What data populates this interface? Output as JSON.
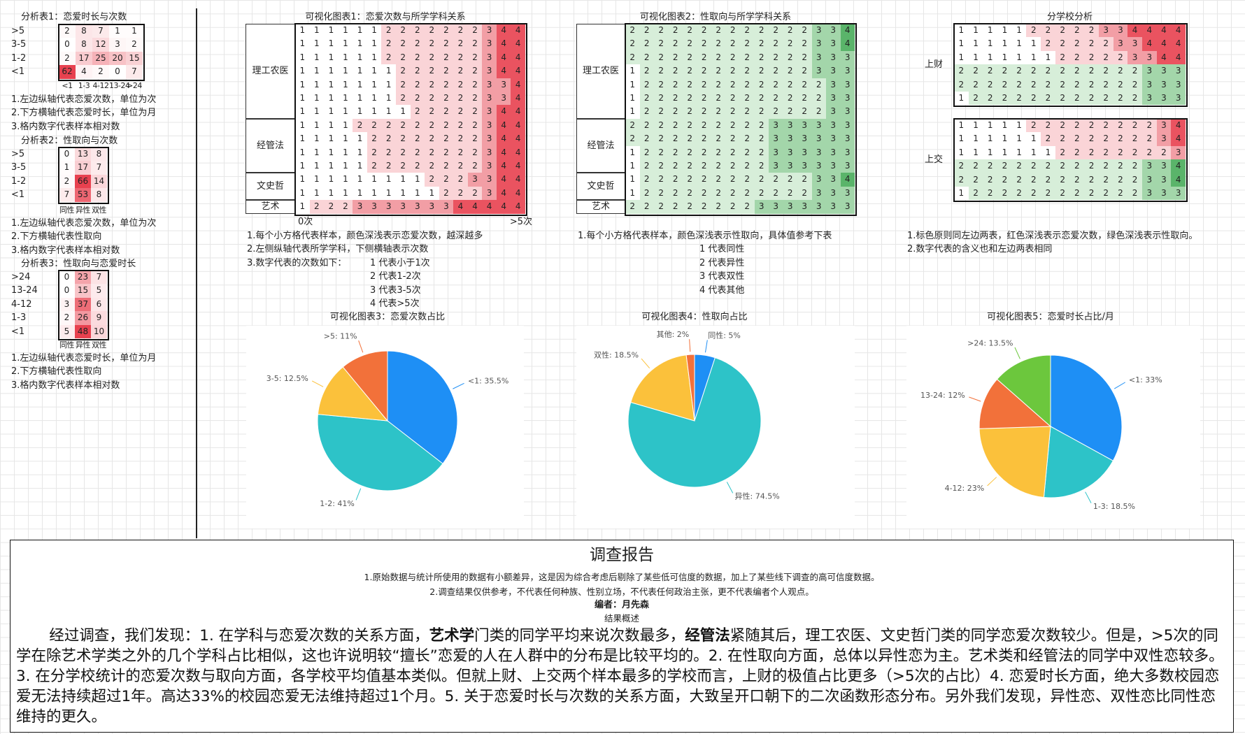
{
  "analysis_tables": [
    {
      "title": "分析表1：恋爱时长与次数",
      "color": "#e8414f",
      "row_labels": [
        ">5",
        "3-5",
        "1-2",
        "<1"
      ],
      "column_labels": [
        "<1",
        "1-3",
        "4-12",
        "13-24",
        ">24"
      ],
      "cells": [
        [
          2,
          8,
          7,
          1,
          1
        ],
        [
          0,
          8,
          12,
          3,
          2
        ],
        [
          2,
          17,
          25,
          20,
          15
        ],
        [
          62,
          4,
          2,
          0,
          7
        ]
      ],
      "notes": [
        "1.左边纵轴代表恋爱次数，单位为次",
        "2.下方横轴代表恋爱时长，单位为月",
        "3.格内数字代表样本相对数"
      ]
    },
    {
      "title": "分析表2：性取向与次数",
      "color": "#e8414f",
      "row_labels": [
        ">5",
        "3-5",
        "1-2",
        "<1"
      ],
      "column_labels": [
        "同性",
        "异性",
        "双性"
      ],
      "cells": [
        [
          0,
          13,
          8
        ],
        [
          1,
          17,
          7
        ],
        [
          2,
          66,
          14
        ],
        [
          7,
          53,
          8
        ]
      ],
      "notes": [
        "1.左边纵轴代表恋爱次数，单位为次",
        "2.下方横轴代表性取向",
        "3.格内数字代表样本相对数"
      ]
    },
    {
      "title": "分析表3：性取向与恋爱时长",
      "color": "#e8414f",
      "row_labels": [
        ">24",
        "13-24",
        "4-12",
        "1-3",
        "<1"
      ],
      "column_labels": [
        "同性",
        "异性",
        "双性"
      ],
      "cells": [
        [
          0,
          23,
          7
        ],
        [
          0,
          15,
          5
        ],
        [
          3,
          37,
          6
        ],
        [
          2,
          26,
          9
        ],
        [
          5,
          48,
          10
        ]
      ],
      "notes": [
        "1.左边纵轴代表恋爱时长，单位为月",
        "2.下方横轴代表性取向",
        "3.格内数字代表样本相对数"
      ]
    }
  ],
  "heatmaps": [
    {
      "title": "可视化图表1：恋爱次数与所学学科关系",
      "colors": [
        "#ffffff",
        "#fad4d7",
        "#f29ea5",
        "#ea5360"
      ],
      "axis_labels": [
        "0次",
        ">5次"
      ],
      "groups": [
        {
          "label": "理工农医",
          "rows": [
            [
              1,
              1,
              1,
              1,
              1,
              1,
              2,
              2,
              2,
              2,
              2,
              2,
              2,
              3,
              4,
              4
            ],
            [
              1,
              1,
              1,
              1,
              1,
              1,
              2,
              2,
              2,
              2,
              2,
              2,
              2,
              3,
              4,
              4
            ],
            [
              1,
              1,
              1,
              1,
              1,
              1,
              2,
              2,
              2,
              2,
              2,
              2,
              2,
              3,
              4,
              4
            ],
            [
              1,
              1,
              1,
              1,
              1,
              1,
              1,
              2,
              2,
              2,
              2,
              2,
              2,
              3,
              4,
              4
            ],
            [
              1,
              1,
              1,
              1,
              1,
              1,
              1,
              2,
              2,
              2,
              2,
              2,
              2,
              3,
              3,
              4
            ],
            [
              1,
              1,
              1,
              1,
              1,
              1,
              1,
              2,
              2,
              2,
              2,
              2,
              2,
              3,
              3,
              4
            ],
            [
              1,
              1,
              1,
              1,
              1,
              1,
              1,
              1,
              2,
              2,
              2,
              2,
              2,
              3,
              4,
              4
            ]
          ]
        },
        {
          "label": "经管法",
          "rows": [
            [
              1,
              1,
              1,
              1,
              2,
              2,
              2,
              2,
              2,
              2,
              2,
              2,
              2,
              3,
              4,
              4
            ],
            [
              1,
              1,
              1,
              1,
              1,
              2,
              2,
              2,
              2,
              2,
              2,
              2,
              2,
              3,
              4,
              4
            ],
            [
              1,
              1,
              1,
              1,
              1,
              2,
              2,
              2,
              2,
              2,
              2,
              2,
              2,
              3,
              4,
              4
            ],
            [
              1,
              1,
              1,
              1,
              1,
              2,
              2,
              2,
              2,
              2,
              2,
              2,
              2,
              3,
              4,
              4
            ]
          ]
        },
        {
          "label": "文史哲",
          "rows": [
            [
              1,
              1,
              1,
              1,
              1,
              1,
              1,
              1,
              1,
              2,
              2,
              2,
              3,
              3,
              4,
              4
            ],
            [
              1,
              1,
              1,
              1,
              1,
              1,
              1,
              1,
              1,
              1,
              2,
              2,
              2,
              3,
              4,
              4
            ]
          ]
        },
        {
          "label": "艺术",
          "rows": [
            [
              1,
              2,
              2,
              2,
              3,
              3,
              3,
              3,
              3,
              3,
              3,
              4,
              4,
              4,
              4,
              4
            ]
          ]
        }
      ],
      "notes": [
        "1.每个小方格代表样本，颜色深浅表示恋爱次数，越深越多",
        "2.左侧纵轴代表所学学科，下侧横轴表示次数",
        "3.数字代表的次数如下："
      ],
      "legend": [
        "1 代表小于1次",
        "2 代表1-2次",
        "3 代表3-5次",
        "4 代表>5次"
      ]
    },
    {
      "title": "可视化图表2：性取向与所学学科关系",
      "colors": [
        "#ffffff",
        "#d7eed9",
        "#a3d6aa",
        "#5ab46a"
      ],
      "groups": [
        {
          "label": "理工农医",
          "rows": [
            [
              2,
              2,
              2,
              2,
              2,
              2,
              2,
              2,
              2,
              2,
              2,
              2,
              2,
              3,
              3,
              4
            ],
            [
              2,
              2,
              2,
              2,
              2,
              2,
              2,
              2,
              2,
              2,
              2,
              2,
              2,
              3,
              3,
              4
            ],
            [
              2,
              2,
              2,
              2,
              2,
              2,
              2,
              2,
              2,
              2,
              2,
              2,
              2,
              3,
              3,
              3
            ],
            [
              1,
              2,
              2,
              2,
              2,
              2,
              2,
              2,
              2,
              2,
              2,
              2,
              2,
              3,
              3,
              3
            ],
            [
              1,
              2,
              2,
              2,
              2,
              2,
              2,
              2,
              2,
              2,
              2,
              2,
              2,
              2,
              3,
              3
            ],
            [
              1,
              2,
              2,
              2,
              2,
              2,
              2,
              2,
              2,
              2,
              2,
              2,
              2,
              2,
              3,
              3
            ],
            [
              1,
              2,
              2,
              2,
              2,
              2,
              2,
              2,
              2,
              2,
              2,
              2,
              2,
              2,
              3,
              3
            ]
          ]
        },
        {
          "label": "经管法",
          "rows": [
            [
              2,
              2,
              2,
              2,
              2,
              2,
              2,
              2,
              2,
              2,
              3,
              3,
              3,
              3,
              3,
              3
            ],
            [
              2,
              2,
              2,
              2,
              2,
              2,
              2,
              2,
              2,
              2,
              3,
              3,
              3,
              3,
              3,
              3
            ],
            [
              1,
              2,
              2,
              2,
              2,
              2,
              2,
              2,
              2,
              2,
              3,
              3,
              3,
              3,
              3,
              3
            ],
            [
              1,
              2,
              2,
              2,
              2,
              2,
              2,
              2,
              2,
              2,
              3,
              3,
              3,
              3,
              3,
              3
            ]
          ]
        },
        {
          "label": "文史哲",
          "rows": [
            [
              1,
              2,
              2,
              2,
              2,
              2,
              2,
              2,
              2,
              2,
              2,
              2,
              2,
              3,
              3,
              4
            ],
            [
              1,
              2,
              2,
              2,
              2,
              2,
              2,
              2,
              2,
              2,
              2,
              2,
              2,
              3,
              3,
              3
            ]
          ]
        },
        {
          "label": "艺术",
          "rows": [
            [
              2,
              2,
              2,
              2,
              2,
              2,
              2,
              2,
              2,
              3,
              3,
              3,
              3,
              3,
              3,
              3
            ]
          ]
        }
      ],
      "notes": [
        "1.每个小方格代表样本，颜色深浅表示性取向，具体值参考下表"
      ],
      "legend": [
        "1 代表同性",
        "2 代表异性",
        "3 代表双性",
        "4 代表其他"
      ]
    }
  ],
  "school_analysis": {
    "title": "分学校分析",
    "count_colors": [
      "#ffffff",
      "#fad4d7",
      "#f29ea5",
      "#ea5360"
    ],
    "orientation_colors": [
      "#ffffff",
      "#d7eed9",
      "#a3d6aa",
      "#5ab46a"
    ],
    "blocks": [
      {
        "label": "上财",
        "count_rows": [
          [
            1,
            1,
            1,
            1,
            1,
            2,
            2,
            2,
            2,
            2,
            3,
            3,
            4,
            4,
            4,
            4
          ],
          [
            1,
            1,
            1,
            1,
            1,
            1,
            2,
            2,
            2,
            2,
            2,
            3,
            3,
            4,
            4,
            4
          ],
          [
            1,
            1,
            1,
            1,
            1,
            1,
            1,
            2,
            2,
            2,
            2,
            2,
            3,
            3,
            4,
            4
          ]
        ],
        "orientation_rows": [
          [
            2,
            2,
            2,
            2,
            2,
            2,
            2,
            2,
            2,
            2,
            2,
            2,
            2,
            3,
            3,
            3
          ],
          [
            2,
            2,
            2,
            2,
            2,
            2,
            2,
            2,
            2,
            2,
            2,
            2,
            2,
            3,
            3,
            3
          ],
          [
            1,
            2,
            2,
            2,
            2,
            2,
            2,
            2,
            2,
            2,
            2,
            2,
            2,
            3,
            3,
            3
          ]
        ]
      },
      {
        "label": "上交",
        "count_rows": [
          [
            1,
            1,
            1,
            1,
            1,
            2,
            2,
            2,
            2,
            2,
            2,
            2,
            2,
            2,
            3,
            4
          ],
          [
            1,
            1,
            1,
            1,
            1,
            1,
            2,
            2,
            2,
            2,
            2,
            2,
            2,
            2,
            3,
            4
          ],
          [
            1,
            1,
            1,
            1,
            1,
            1,
            1,
            2,
            2,
            2,
            2,
            2,
            2,
            2,
            2,
            3
          ]
        ],
        "orientation_rows": [
          [
            2,
            2,
            2,
            2,
            2,
            2,
            2,
            2,
            2,
            2,
            2,
            2,
            2,
            3,
            3,
            4
          ],
          [
            2,
            2,
            2,
            2,
            2,
            2,
            2,
            2,
            2,
            2,
            2,
            2,
            2,
            3,
            3,
            4
          ],
          [
            1,
            2,
            2,
            2,
            2,
            2,
            2,
            2,
            2,
            2,
            2,
            2,
            2,
            3,
            3,
            3
          ]
        ]
      }
    ],
    "notes": [
      "1.标色原则同左边两表，红色深浅表示恋爱次数，绿色深浅表示性取向。",
      "2.数字代表的含义也和左边两表相同"
    ]
  },
  "chart_data": [
    {
      "type": "pie",
      "title": "可视化图表3：恋爱次数占比",
      "values": [
        35.5,
        41,
        12.5,
        11
      ],
      "value_labels": [
        "<1: 35.5%",
        "1-2: 41%",
        "3-5: 12.5%",
        ">5: 11%"
      ],
      "colors": [
        "#1e8ff5",
        "#2dc3c8",
        "#fbc13b",
        "#f2713a"
      ]
    },
    {
      "type": "pie",
      "title": "可视化图表4：性取向占比",
      "values": [
        5,
        74.5,
        18.5,
        2
      ],
      "value_labels": [
        "同性: 5%",
        "异性: 74.5%",
        "双性: 18.5%",
        "其他: 2%"
      ],
      "colors": [
        "#1e8ff5",
        "#2dc3c8",
        "#fbc13b",
        "#f2713a"
      ]
    },
    {
      "type": "pie",
      "title": "可视化图表5：恋爱时长占比/月",
      "values": [
        33,
        18.5,
        23,
        12,
        13.5
      ],
      "value_labels": [
        "<1: 33%",
        "1-3: 18.5%",
        "4-12: 23%",
        "13-24: 12%",
        ">24: 13.5%"
      ],
      "colors": [
        "#1e8ff5",
        "#2dc3c8",
        "#fbc13b",
        "#f2713a",
        "#6cc73d"
      ]
    }
  ],
  "report": {
    "title": "调查报告",
    "notes": [
      "1.原始数据与统计所使用的数据有小额差异，这是因为综合考虑后剔除了某些低可信度的数据，加上了某些线下调查的高可信度数据。",
      "2.调查结果仅供参考，不代表任何种族、性别立场，不代表任何政治主张，更不代表编者个人观点。"
    ],
    "editor": "编者：月先森",
    "subtitle": "结果概述",
    "paragraph": [
      {
        "text": "经过调查，我们发现：1. 在学科与恋爱次数的关系方面，",
        "bold": false
      },
      {
        "text": "艺术学",
        "bold": true
      },
      {
        "text": "门类的同学平均来说次数最多，",
        "bold": false
      },
      {
        "text": "经管法",
        "bold": true
      },
      {
        "text": "紧随其后，理工农医、文史哲门类的同学恋爱次数较少。但是，>5次的同学在除艺术学类之外的几个学科占比相似，这也许说明较“擅长”恋爱的人在人群中的分布是比较平均的。2. 在性取向方面，总体以异性恋为主。艺术类和经管法的同学中双性恋较多。3. 在分学校统计的恋爱次数与取向方面，各学校平均值基本类似。但就上财、上交两个样本最多的学校而言，上财的极值占比更多（>5次的占比）4. 恋爱时长方面，绝大多数校园恋爱无法持续超过1年。高达33%的校园恋爱无法维持超过1个月。5. 关于恋爱时长与次数的关系方面，大致呈开口朝下的二次函数形态分布。另外我们发现，异性恋、双性恋比同性恋维持的更久。",
        "bold": false
      }
    ]
  }
}
